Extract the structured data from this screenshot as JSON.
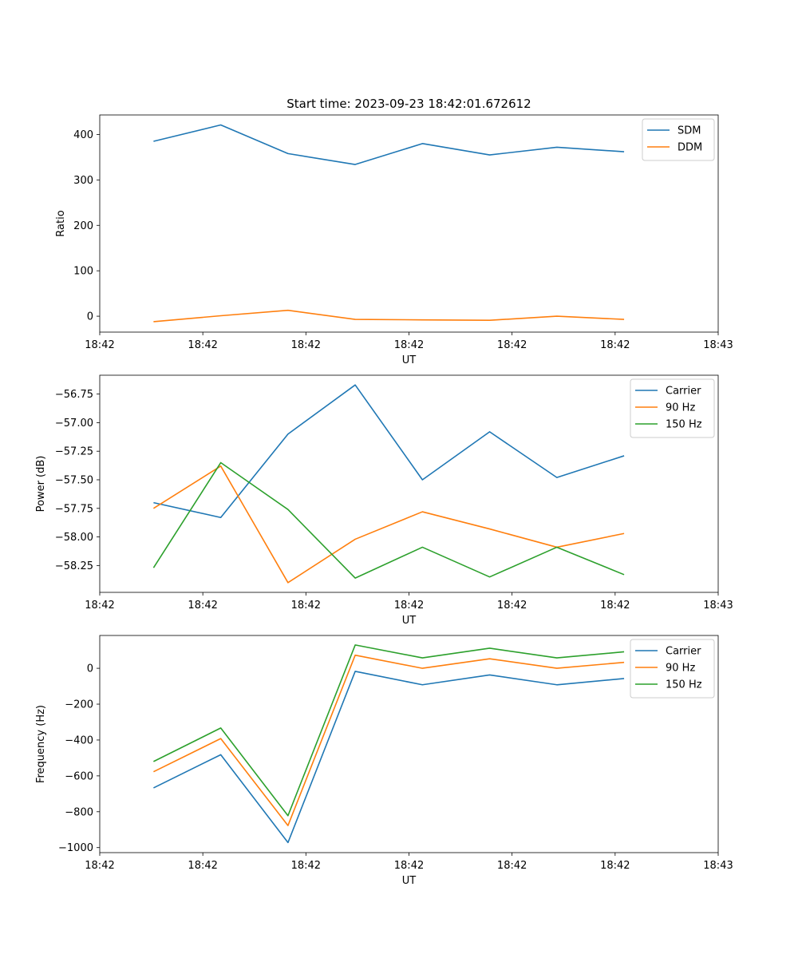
{
  "figure_title": "Start time: 2023-09-23 18:42:01.672612",
  "chart_data": [
    {
      "type": "line",
      "title": "Start time: 2023-09-23 18:42:01.672612",
      "xlabel": "UT",
      "ylabel": "Ratio",
      "x": [
        1,
        2,
        3,
        4,
        5,
        6,
        7,
        8
      ],
      "xlim": [
        0.2,
        9.4
      ],
      "xticks": [
        0.2,
        1.7333,
        3.2667,
        4.8,
        6.3333,
        7.8667,
        9.4
      ],
      "xtick_labels": [
        "18:42",
        "18:42",
        "18:42",
        "18:42",
        "18:42",
        "18:42",
        "18:43"
      ],
      "ylim": [
        -35,
        443
      ],
      "yticks": [
        0,
        100,
        200,
        300,
        400
      ],
      "ytick_labels": [
        "0",
        "100",
        "200",
        "300",
        "400"
      ],
      "legend": "top-right",
      "series": [
        {
          "name": "SDM",
          "color": "#1f77b4",
          "values": [
            385,
            421,
            358,
            334,
            380,
            355,
            372,
            362
          ]
        },
        {
          "name": "DDM",
          "color": "#ff7f0e",
          "values": [
            -12,
            1,
            13,
            -7,
            -8,
            -9,
            0,
            -7
          ]
        }
      ]
    },
    {
      "type": "line",
      "title": "",
      "xlabel": "UT",
      "ylabel": "Power (dB)",
      "x": [
        1,
        2,
        3,
        4,
        5,
        6,
        7,
        8
      ],
      "xlim": [
        0.2,
        9.4
      ],
      "xticks": [
        0.2,
        1.7333,
        3.2667,
        4.8,
        6.3333,
        7.8667,
        9.4
      ],
      "xtick_labels": [
        "18:42",
        "18:42",
        "18:42",
        "18:42",
        "18:42",
        "18:42",
        "18:43"
      ],
      "ylim": [
        -58.485,
        -56.585
      ],
      "yticks": [
        -58.25,
        -58.0,
        -57.75,
        -57.5,
        -57.25,
        -57.0,
        -56.75
      ],
      "ytick_labels": [
        "−58.25",
        "−58.00",
        "−57.75",
        "−57.50",
        "−57.25",
        "−57.00",
        "−56.75"
      ],
      "legend": "top-right",
      "series": [
        {
          "name": "Carrier",
          "color": "#1f77b4",
          "values": [
            -57.7,
            -57.83,
            -57.1,
            -56.67,
            -57.5,
            -57.08,
            -57.48,
            -57.29
          ]
        },
        {
          "name": "90 Hz",
          "color": "#ff7f0e",
          "values": [
            -57.75,
            -57.38,
            -58.4,
            -58.02,
            -57.78,
            -57.93,
            -58.09,
            -57.97
          ]
        },
        {
          "name": "150 Hz",
          "color": "#2ca02c",
          "values": [
            -58.27,
            -57.35,
            -57.76,
            -58.36,
            -58.09,
            -58.35,
            -58.09,
            -58.33
          ]
        }
      ]
    },
    {
      "type": "line",
      "title": "",
      "xlabel": "UT",
      "ylabel": "Frequency (Hz)",
      "x": [
        1,
        2,
        3,
        4,
        5,
        6,
        7,
        8
      ],
      "xlim": [
        0.2,
        9.4
      ],
      "xticks": [
        0.2,
        1.7333,
        3.2667,
        4.8,
        6.3333,
        7.8667,
        9.4
      ],
      "xtick_labels": [
        "18:42",
        "18:42",
        "18:42",
        "18:42",
        "18:42",
        "18:42",
        "18:43"
      ],
      "ylim": [
        -1028,
        183
      ],
      "yticks": [
        -1000,
        -800,
        -600,
        -400,
        -200,
        0
      ],
      "ytick_labels": [
        "−1000",
        "−800",
        "−600",
        "−400",
        "−200",
        "0"
      ],
      "legend": "top-right",
      "series": [
        {
          "name": "Carrier",
          "color": "#1f77b4",
          "values": [
            -667,
            -482,
            -972,
            -17,
            -92,
            -37,
            -92,
            -57
          ]
        },
        {
          "name": "90 Hz",
          "color": "#ff7f0e",
          "values": [
            -577,
            -392,
            -877,
            73,
            0,
            53,
            0,
            33
          ]
        },
        {
          "name": "150 Hz",
          "color": "#2ca02c",
          "values": [
            -520,
            -333,
            -822,
            130,
            58,
            112,
            58,
            92
          ]
        }
      ]
    }
  ]
}
